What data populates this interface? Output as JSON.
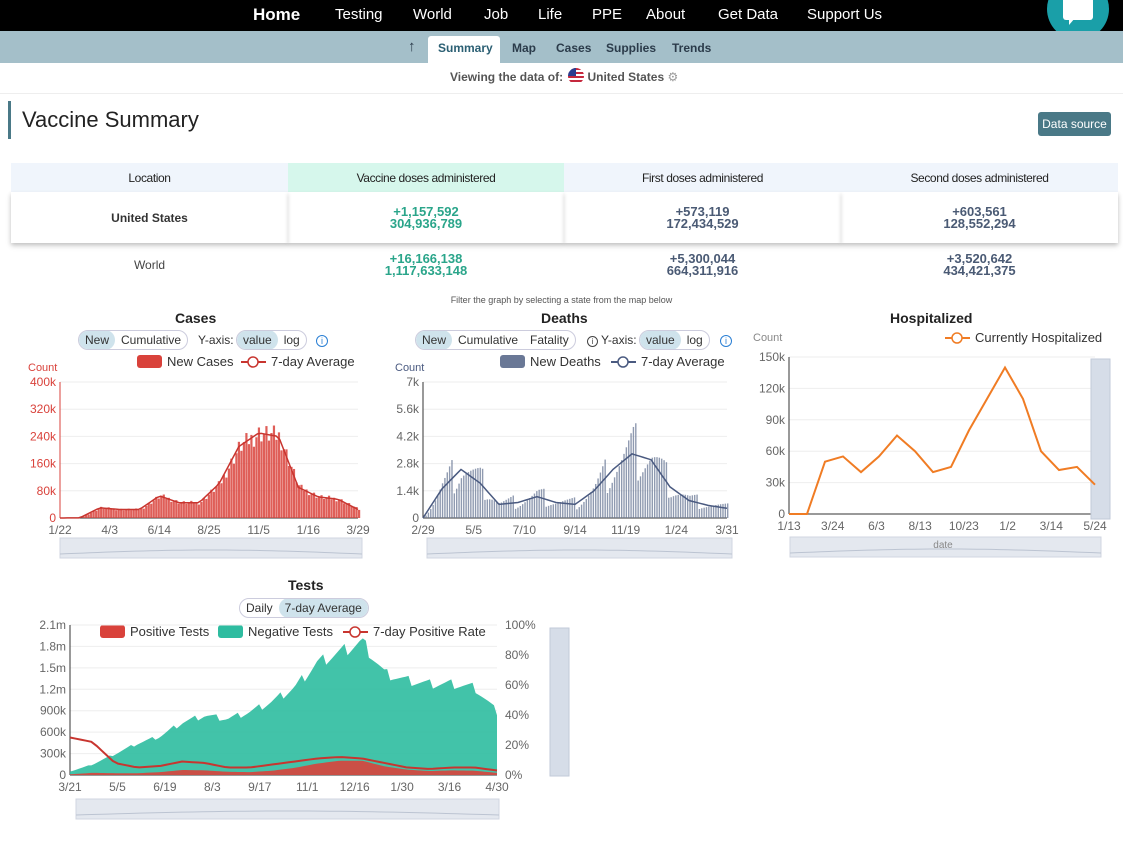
{
  "topnav": {
    "home": "Home",
    "items": [
      "Testing",
      "World",
      "Job",
      "Life",
      "PPE",
      "About",
      "Get Data",
      "Support Us"
    ]
  },
  "subnav": {
    "up_icon": "up-arrow-icon",
    "items": [
      "Summary",
      "Map",
      "Cases",
      "Supplies",
      "Trends"
    ],
    "active": "Summary"
  },
  "viewing": {
    "prefix": "Viewing the data of:",
    "country": "United States"
  },
  "page_title": "Vaccine Summary",
  "data_source_button": "Data source",
  "vaccine_table": {
    "headers": [
      "Location",
      "Vaccine doses administered",
      "First doses administered",
      "Second doses administered"
    ],
    "rows": [
      {
        "location": "United States",
        "doses_delta": "+1,157,592",
        "doses": "304,936,789",
        "first_delta": "+573,119",
        "first": "172,434,529",
        "second_delta": "+603,561",
        "second": "128,552,294"
      },
      {
        "location": "World",
        "doses_delta": "+16,166,138",
        "doses": "1,117,633,148",
        "first_delta": "+5,300,044",
        "first": "664,311,916",
        "second_delta": "+3,520,642",
        "second": "434,421,375"
      }
    ]
  },
  "filter_note": "Filter the graph by selecting a state from the map below",
  "cases_panel": {
    "title": "Cases",
    "mode_options": [
      "New",
      "Cumulative"
    ],
    "mode_selected": "New",
    "yaxis_label": "Y-axis:",
    "yaxis_options": [
      "value",
      "log"
    ],
    "yaxis_selected": "value",
    "info_icon": "info-icon"
  },
  "deaths_panel": {
    "title": "Deaths",
    "mode_options": [
      "New",
      "Cumulative",
      "Fatality"
    ],
    "mode_selected": "New",
    "yaxis_label": "Y-axis:",
    "yaxis_options": [
      "value",
      "log"
    ],
    "yaxis_selected": "value",
    "info_icon": "info-icon"
  },
  "hosp_panel": {
    "title": "Hospitalized"
  },
  "tests_panel": {
    "title": "Tests",
    "mode_options": [
      "Daily",
      "7-day Average"
    ],
    "mode_selected": "7-day Average"
  },
  "chart_data": [
    {
      "type": "bar",
      "name": "cases",
      "ylabel": "Count",
      "legend": [
        "New Cases",
        "7-day Average"
      ],
      "colors": {
        "bars": "#d9423b",
        "avg": "#c8352f",
        "axis": "#d9423b"
      },
      "ylim": [
        0,
        400000
      ],
      "yticks": [
        "0",
        "80k",
        "160k",
        "240k",
        "320k",
        "400k"
      ],
      "xticks": [
        "1/22",
        "4/3",
        "6/14",
        "8/25",
        "11/5",
        "1/16",
        "3/29"
      ],
      "x": [
        "1/22",
        "3/1",
        "4/3",
        "5/10",
        "6/14",
        "7/20",
        "8/25",
        "10/1",
        "11/5",
        "12/10",
        "1/2",
        "1/16",
        "2/15",
        "3/29",
        "4/30",
        "5/24"
      ],
      "avg_values": [
        0,
        500,
        30000,
        25000,
        25000,
        65000,
        45000,
        45000,
        100000,
        210000,
        250000,
        240000,
        90000,
        62000,
        55000,
        25000
      ]
    },
    {
      "type": "bar",
      "name": "deaths",
      "ylabel": "Count",
      "legend": [
        "New Deaths",
        "7-day Average"
      ],
      "colors": {
        "bars": "#6a7896",
        "avg": "#4a5a80"
      },
      "ylim": [
        0,
        7000
      ],
      "yticks": [
        "0",
        "1.4k",
        "2.8k",
        "4.2k",
        "5.6k",
        "7k"
      ],
      "xticks": [
        "2/29",
        "5/5",
        "7/10",
        "9/14",
        "11/19",
        "1/24",
        "3/31"
      ],
      "x": [
        "2/29",
        "4/1",
        "4/20",
        "5/5",
        "6/10",
        "7/10",
        "8/10",
        "9/14",
        "10/20",
        "11/19",
        "12/20",
        "1/12",
        "1/24",
        "2/20",
        "3/31",
        "5/1",
        "5/24"
      ],
      "avg_values": [
        0,
        1500,
        2500,
        1800,
        700,
        800,
        1100,
        800,
        700,
        1400,
        2500,
        3300,
        3000,
        1600,
        900,
        650,
        500
      ]
    },
    {
      "type": "line",
      "name": "hospitalized",
      "ylabel": "Count",
      "legend": [
        "Currently Hospitalized"
      ],
      "colors": {
        "line": "#f07c24"
      },
      "ylim": [
        0,
        150000
      ],
      "yticks": [
        "0",
        "30k",
        "60k",
        "90k",
        "120k",
        "150k"
      ],
      "xticks": [
        "1/13",
        "3/24",
        "6/3",
        "8/13",
        "10/23",
        "1/2",
        "3/14",
        "5/24"
      ],
      "xlabel": "date",
      "x": [
        "1/13",
        "3/24",
        "4/10",
        "5/1",
        "6/3",
        "7/1",
        "7/20",
        "8/13",
        "9/10",
        "10/23",
        "11/20",
        "12/10",
        "1/2",
        "1/20",
        "2/15",
        "3/14",
        "4/15",
        "5/24"
      ],
      "values": [
        0,
        0,
        50000,
        55000,
        40000,
        55000,
        75000,
        60000,
        40000,
        45000,
        80000,
        110000,
        140000,
        110000,
        60000,
        42000,
        45000,
        28000
      ]
    },
    {
      "type": "area",
      "name": "tests",
      "legend": [
        "Positive Tests",
        "Negative Tests",
        "7-day Positive Rate"
      ],
      "colors": {
        "positive": "#d9423b",
        "negative": "#2ebca0",
        "rate": "#c8352f"
      },
      "ylim": [
        0,
        2100000
      ],
      "yticks": [
        "0",
        "300k",
        "600k",
        "900k",
        "1.2m",
        "1.5m",
        "1.8m",
        "2.1m"
      ],
      "y2ticks": [
        "0%",
        "20%",
        "40%",
        "60%",
        "80%",
        "100%"
      ],
      "xticks": [
        "3/21",
        "5/5",
        "6/19",
        "8/3",
        "9/17",
        "11/1",
        "12/16",
        "1/30",
        "3/16",
        "4/30"
      ],
      "x": [
        "3/21",
        "4/10",
        "5/5",
        "6/1",
        "6/19",
        "7/15",
        "8/3",
        "9/1",
        "9/17",
        "10/15",
        "11/1",
        "11/20",
        "12/16",
        "1/5",
        "1/30",
        "2/20",
        "3/16",
        "4/10",
        "4/30",
        "5/24"
      ],
      "total_values": [
        50000,
        150000,
        300000,
        450000,
        550000,
        750000,
        850000,
        800000,
        900000,
        1050000,
        1250000,
        1600000,
        1750000,
        1900000,
        1450000,
        1350000,
        1300000,
        1300000,
        1250000,
        900000
      ],
      "positive_values": [
        10000,
        30000,
        25000,
        25000,
        40000,
        70000,
        65000,
        45000,
        40000,
        60000,
        100000,
        160000,
        200000,
        200000,
        120000,
        75000,
        55000,
        65000,
        60000,
        30000
      ],
      "rate_values": [
        25,
        22,
        8,
        5,
        6,
        9,
        8,
        5,
        5,
        7,
        9,
        11,
        12,
        11,
        8,
        5,
        4,
        5,
        5,
        3
      ]
    }
  ]
}
